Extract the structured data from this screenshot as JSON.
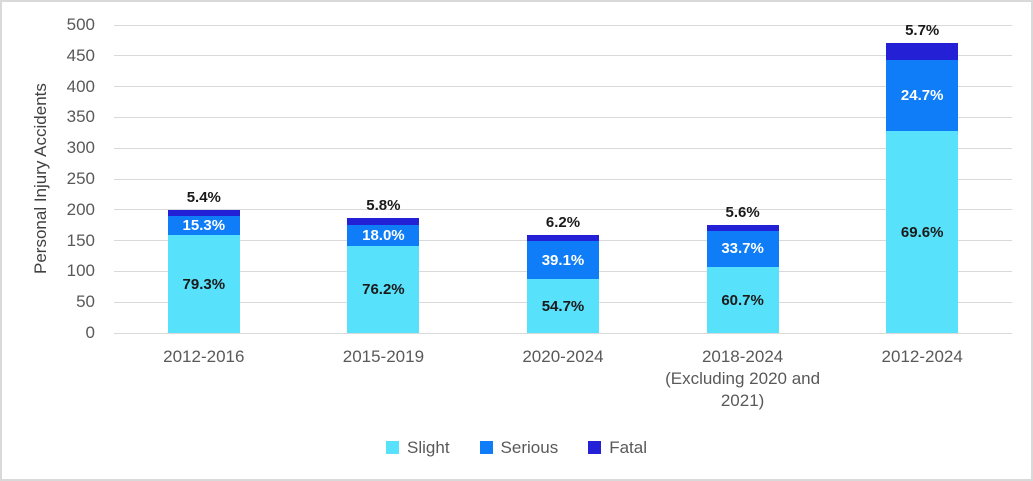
{
  "chart_data": {
    "type": "bar",
    "stacked": true,
    "title": "",
    "ylabel": "Personal Injury Accidents",
    "xlabel": "",
    "ylim": [
      0,
      500
    ],
    "ytick_step": 50,
    "grid": true,
    "legend_position": "bottom",
    "categories": [
      "2012-2016",
      "2015-2019",
      "2020-2024",
      "2018-2024 (Excluding 2020 and 2021)",
      "2012-2024"
    ],
    "category_lines": [
      [
        "2012-2016"
      ],
      [
        "2015-2019"
      ],
      [
        "2020-2024"
      ],
      [
        "2018-2024",
        "(Excluding 2020 and",
        "2021)"
      ],
      [
        "2012-2024"
      ]
    ],
    "totals": [
      200,
      186,
      159,
      176,
      470
    ],
    "series": [
      {
        "name": "Slight",
        "color": "#57e1fa",
        "pct": [
          79.3,
          76.2,
          54.7,
          60.7,
          69.6
        ],
        "label_color": "#1a1a1a",
        "label_inside": true
      },
      {
        "name": "Serious",
        "color": "#0f7df7",
        "pct": [
          15.3,
          18.0,
          39.1,
          33.7,
          24.7
        ],
        "label_color": "#ffffff",
        "label_inside": true
      },
      {
        "name": "Fatal",
        "color": "#2320d6",
        "pct": [
          5.4,
          5.8,
          6.2,
          5.6,
          5.7
        ],
        "label_color": "#1a1a1a",
        "label_inside": false
      }
    ],
    "colors": {
      "gridline": "#d9d9d9",
      "tick_label": "#595959",
      "axis_title": "#404040",
      "category_label": "#595959",
      "legend_label": "#595959",
      "outside_label": "#1a1a1a",
      "border": "#d9d9d9",
      "background": "#ffffff"
    }
  }
}
